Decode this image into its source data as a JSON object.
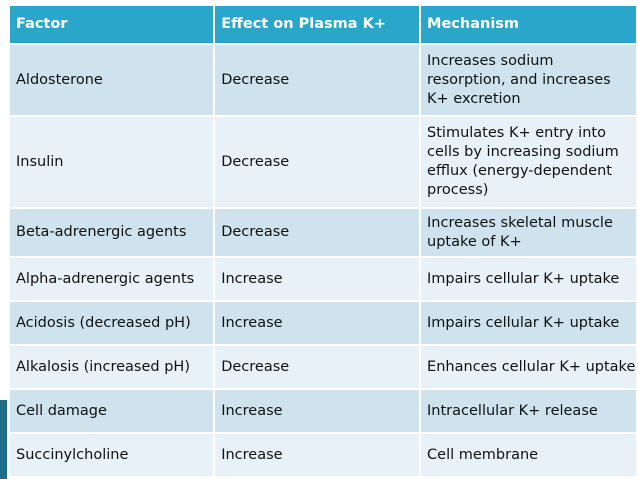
{
  "table": {
    "headers": [
      "Factor",
      "Effect on Plasma K+",
      "Mechanism"
    ],
    "rows": [
      {
        "factor": "Aldosterone",
        "effect": "Decrease",
        "mechanism": "Increases sodium resorption, and increases K+ excretion"
      },
      {
        "factor": "Insulin",
        "effect": "Decrease",
        "mechanism": "Stimulates K+ entry into cells by increasing sodium efflux (energy-dependent process)"
      },
      {
        "factor": "Beta-adrenergic agents",
        "effect": "Decrease",
        "mechanism": "Increases skeletal muscle uptake of K+"
      },
      {
        "factor": "Alpha-adrenergic agents",
        "effect": "Increase",
        "mechanism": "Impairs cellular K+ uptake"
      },
      {
        "factor": "Acidosis (decreased pH)",
        "effect": "Increase",
        "mechanism": "Impairs cellular K+ uptake"
      },
      {
        "factor": "Alkalosis (increased pH)",
        "effect": "Decrease",
        "mechanism": "Enhances cellular K+ uptake"
      },
      {
        "factor": "Cell damage",
        "effect": "Increase",
        "mechanism": "Intracellular K+ release"
      },
      {
        "factor": "Succinylcholine",
        "effect": "Increase",
        "mechanism": "Cell membrane"
      }
    ]
  }
}
